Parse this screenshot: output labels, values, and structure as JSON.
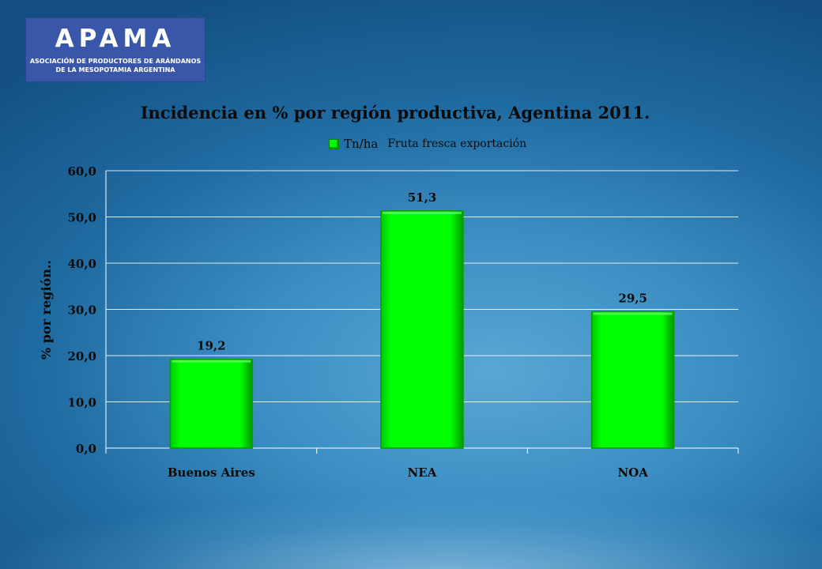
{
  "logo": {
    "mark": "APAMA",
    "line1": "ASOCIACIÓN DE PRODUCTORES DE ARÁNDANOS",
    "line2": "DE LA MESOPOTAMIA ARGENTINA"
  },
  "legend": {
    "series_label": "Tn/ha",
    "note": "Fruta fresca exportación"
  },
  "colors": {
    "bar": "#00ff00",
    "bar_dark": "#00a000",
    "grid": "#ffffff"
  },
  "chart_data": {
    "type": "bar",
    "title": "Incidencia en % por región productiva, Agentina 2011.",
    "xlabel": "",
    "ylabel": "% por región..",
    "categories": [
      "Buenos Aires",
      "NEA",
      "NOA"
    ],
    "series": [
      {
        "name": "Tn/ha",
        "values": [
          19.2,
          51.3,
          29.5
        ]
      }
    ],
    "data_labels": [
      "19,2",
      "51,3",
      "29,5"
    ],
    "ylim": [
      0,
      60
    ],
    "yticks": [
      0,
      10,
      20,
      30,
      40,
      50,
      60
    ],
    "ytick_labels": [
      "0,0",
      "10,0",
      "20,0",
      "30,0",
      "40,0",
      "50,0",
      "60,0"
    ],
    "grid": true,
    "legend_position": "top-center"
  }
}
